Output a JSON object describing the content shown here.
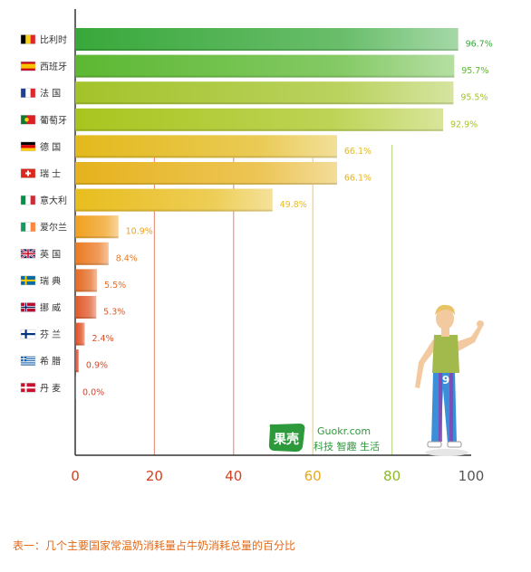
{
  "chart_data": {
    "type": "bar",
    "orientation": "horizontal",
    "categories": [
      "比利时",
      "西班牙",
      "法 国",
      "葡萄牙",
      "德 国",
      "瑞 士",
      "意大利",
      "爱尔兰",
      "英 国",
      "瑞 典",
      "挪 威",
      "芬 兰",
      "希 腊",
      "丹 麦"
    ],
    "values": [
      96.7,
      95.7,
      95.5,
      92.9,
      66.1,
      66.1,
      49.8,
      10.9,
      8.4,
      5.5,
      5.3,
      2.4,
      0.9,
      0.0
    ],
    "value_labels": [
      "96.7%",
      "95.7%",
      "95.5%",
      "92.9%",
      "66.1%",
      "66.1%",
      "49.8%",
      "10.9%",
      "8.4%",
      "5.5%",
      "5.3%",
      "2.4%",
      "0.9%",
      "0.0%"
    ],
    "xlim": [
      0,
      100
    ],
    "xticks": [
      0,
      20,
      40,
      60,
      80,
      100
    ],
    "xtick_labels": [
      "0",
      "20",
      "40",
      "60",
      "80",
      "100"
    ],
    "xtick_colors": [
      "#d3401f",
      "#d3401f",
      "#d3401f",
      "#e8a81a",
      "#8cb92a",
      "#555555"
    ],
    "bar_colors": [
      "#38a83a",
      "#5cb832",
      "#a3c32a",
      "#a8c51e",
      "#e3b91c",
      "#e6b21d",
      "#e8bd1e",
      "#f0a01e",
      "#eb7a22",
      "#e46a23",
      "#e0582a",
      "#df4d22",
      "#d9472a",
      "#d83e2a"
    ],
    "title": "",
    "xlabel": "",
    "ylabel": "",
    "grid": false,
    "legend": "none"
  },
  "flags": [
    "belgium-flag-icon",
    "spain-flag-icon",
    "france-flag-icon",
    "portugal-flag-icon",
    "germany-flag-icon",
    "switzerland-flag-icon",
    "italy-flag-icon",
    "ireland-flag-icon",
    "uk-flag-icon",
    "sweden-flag-icon",
    "norway-flag-icon",
    "finland-flag-icon",
    "greece-flag-icon",
    "denmark-flag-icon"
  ],
  "logo": {
    "mark": "果壳",
    "url": "Guokr.com",
    "tagline": "科技 智趣 生活"
  },
  "caption": "表一：几个主要国家常温奶消耗量占牛奶消耗总量的百分比"
}
